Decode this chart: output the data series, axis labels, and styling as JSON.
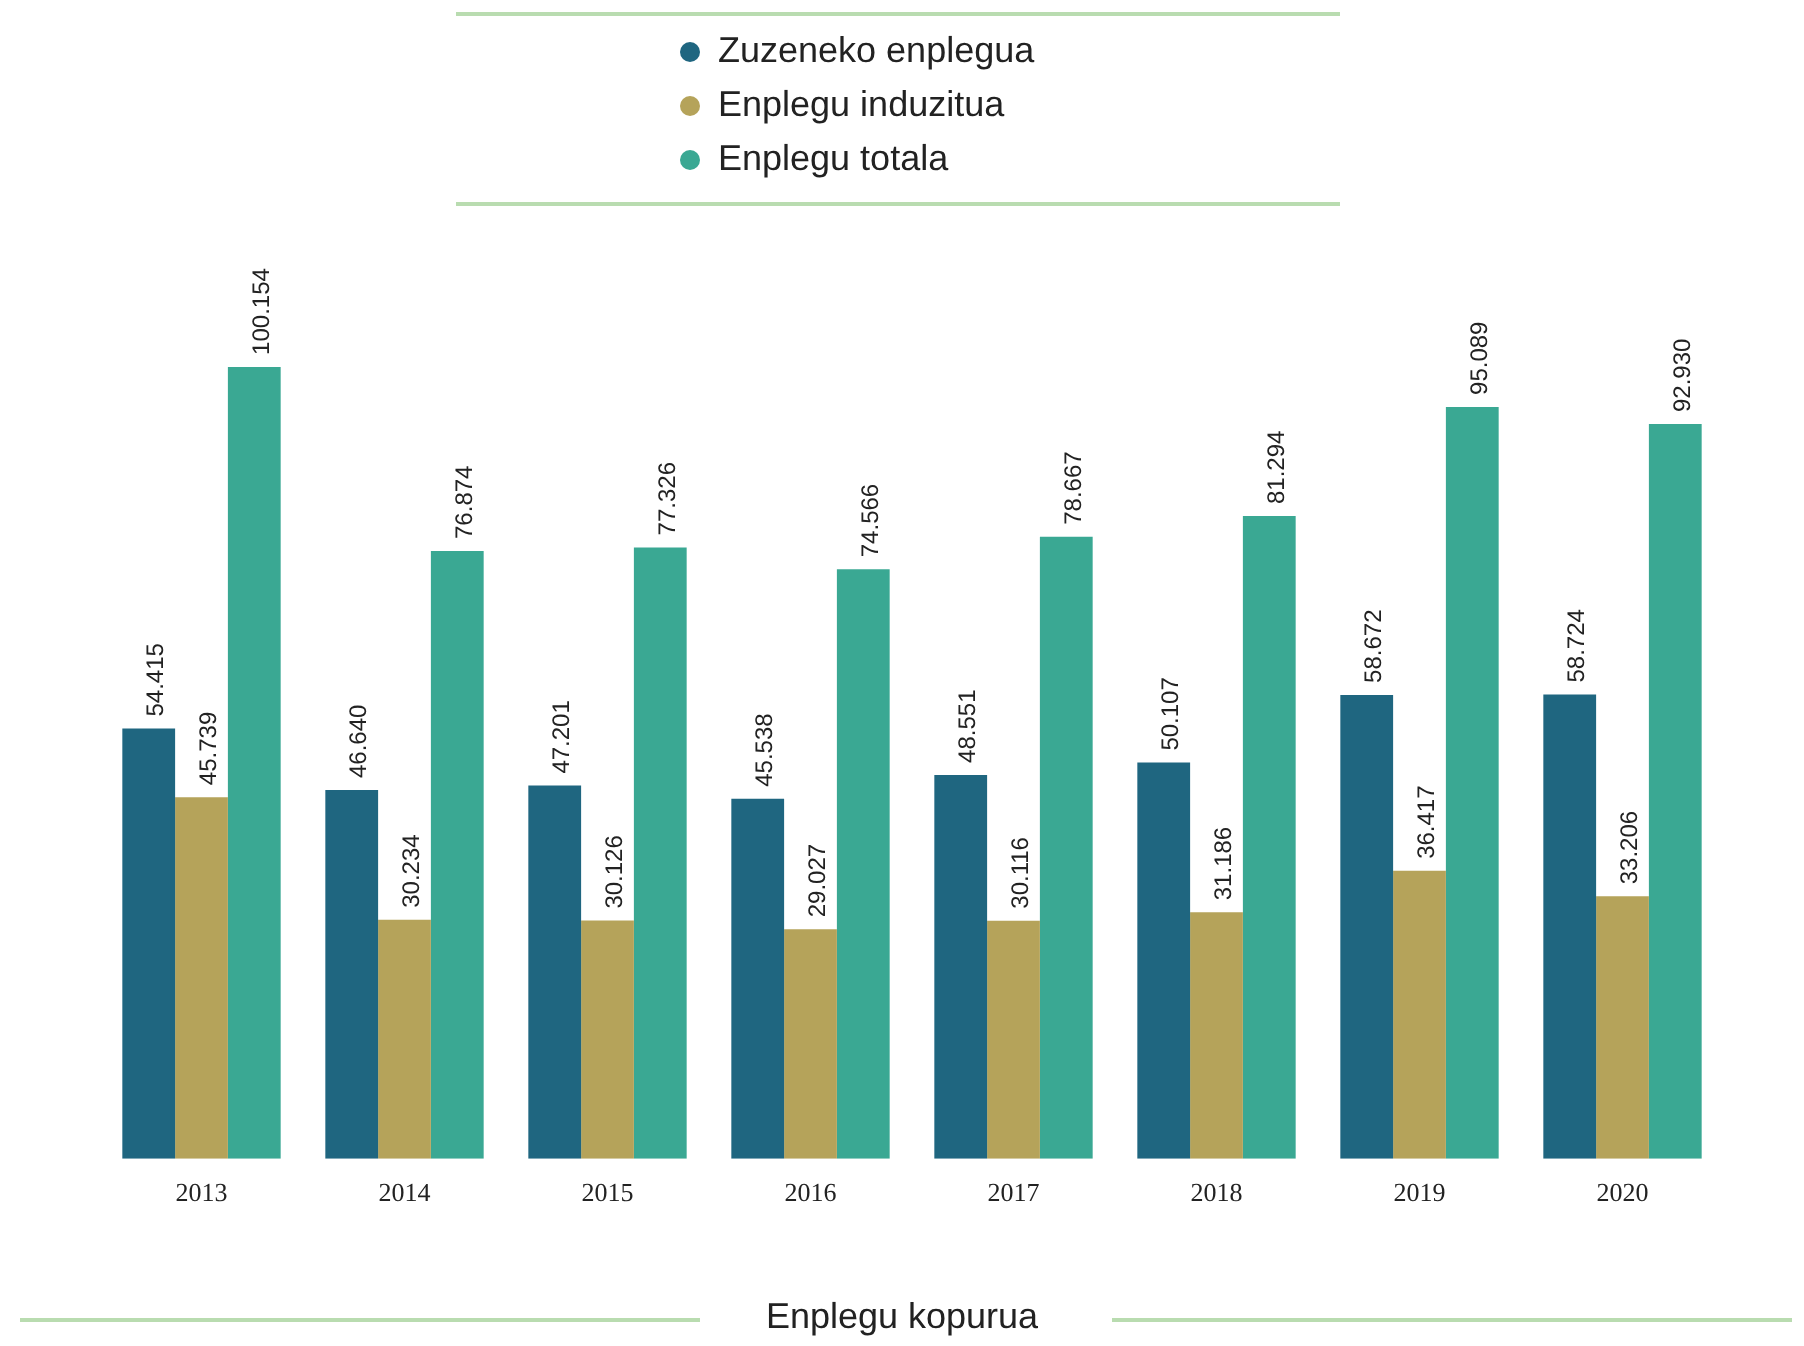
{
  "chart_data": {
    "type": "bar",
    "xlabel": "Enplegu kopurua",
    "legend": "top",
    "grid": false,
    "categories": [
      "2013",
      "2014",
      "2015",
      "2016",
      "2017",
      "2018",
      "2019",
      "2020"
    ],
    "series": [
      {
        "name": "Zuzeneko enplegua",
        "color": "#1f6680",
        "values": [
          54415,
          46640,
          47201,
          45538,
          48551,
          50107,
          58672,
          58724
        ],
        "value_labels": [
          "54.415",
          "46.640",
          "47.201",
          "45.538",
          "48.551",
          "50.107",
          "58.672",
          "58.724"
        ]
      },
      {
        "name": "Enplegu induzitua",
        "color": "#b5a35a",
        "values": [
          45739,
          30234,
          30126,
          29027,
          30116,
          31186,
          36417,
          33206
        ],
        "value_labels": [
          "45.739",
          "30.234",
          "30.126",
          "29.027",
          "30.116",
          "31.186",
          "36.417",
          "33.206"
        ]
      },
      {
        "name": "Enplegu totala",
        "color": "#3aa893",
        "values": [
          100154,
          76874,
          77326,
          74566,
          78667,
          81294,
          95089,
          92930
        ],
        "value_labels": [
          "100.154",
          "76.874",
          "77.326",
          "74.566",
          "78.667",
          "81.294",
          "95.089",
          "92.930"
        ]
      }
    ]
  }
}
